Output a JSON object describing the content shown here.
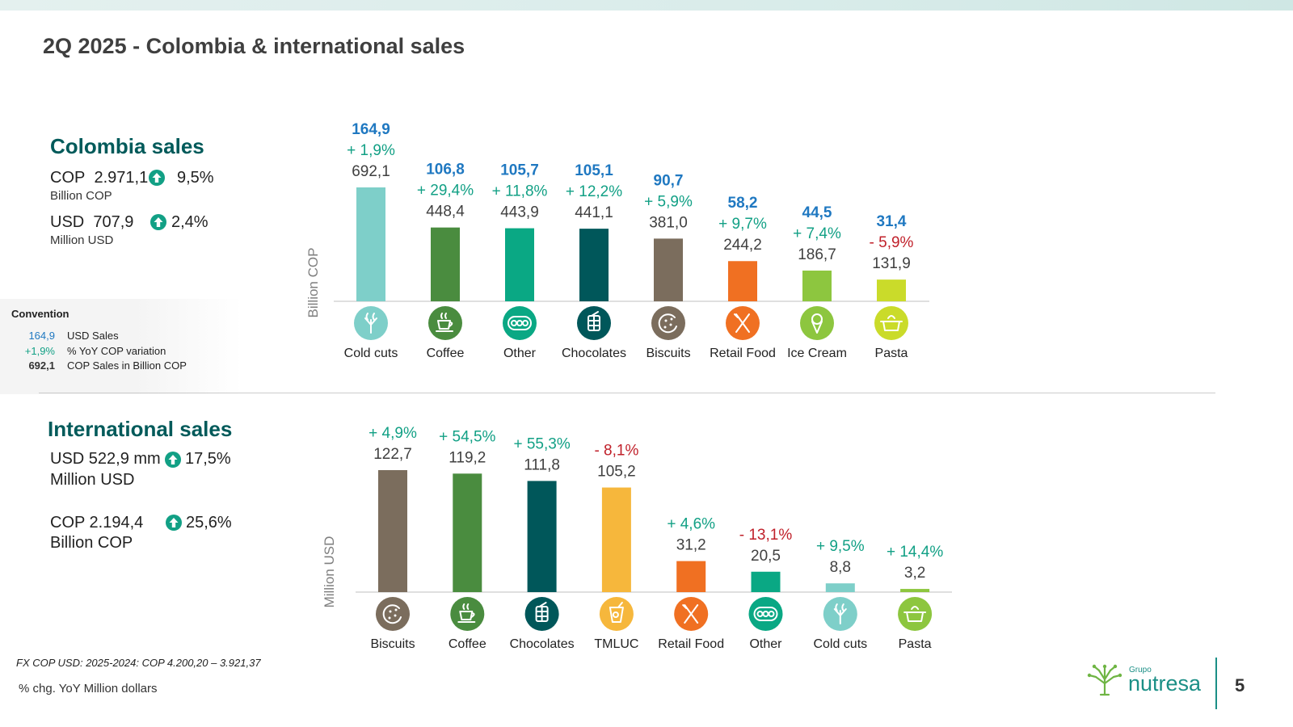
{
  "title": "2Q 2025 - Colombia & international sales",
  "colombia": {
    "heading": "Colombia sales",
    "cop_label": "COP",
    "cop_value": "2.971,1",
    "cop_change": "9,5%",
    "cop_unit": "Billion  COP",
    "usd_label": "USD",
    "usd_value": "707,9",
    "usd_change": "2,4%",
    "usd_unit": "Million USD"
  },
  "international": {
    "heading": "International sales",
    "usd_line": "USD 522,9 mm",
    "usd_change": "17,5%",
    "usd_unit": "Million USD",
    "cop_line": "COP 2.194,4",
    "cop_change": "25,6%",
    "cop_unit": "Billion COP"
  },
  "convention": {
    "title": "Convention",
    "rows": [
      {
        "value": "164,9",
        "label": "USD Sales",
        "color": "#1f78c1"
      },
      {
        "value": "+1,9%",
        "label": "% YoY COP variation",
        "color": "#12a085"
      },
      {
        "value": "692,1",
        "label": "COP Sales in Billion COP",
        "color": "#333333"
      }
    ]
  },
  "footer": {
    "fx_note": "FX COP USD: 2025-2024: COP 4.200,20 – 3.921,37",
    "note": "% chg. YoY  Million dollars",
    "logo_small": "Grupo",
    "logo_name": "nutresa",
    "page_number": "5"
  },
  "colors": {
    "usd_blue": "#1f78c1",
    "positive": "#12a085",
    "negative": "#c0202a",
    "teal_dark": "#005a5a"
  },
  "chart_data": [
    {
      "type": "bar",
      "ylabel": "Billion COP",
      "categories": [
        "Cold cuts",
        "Coffee",
        "Other",
        "Chocolates",
        "Biscuits",
        "Retail Food",
        "Ice Cream",
        "Pasta"
      ],
      "values": [
        692.1,
        448.4,
        443.9,
        441.1,
        381.0,
        244.2,
        186.7,
        131.9
      ],
      "value_labels": [
        "692,1",
        "448,4",
        "443,9",
        "441,1",
        "381,0",
        "244,2",
        "186,7",
        "131,9"
      ],
      "variation_labels": [
        "+ 1,9%",
        "+ 29,4%",
        "+ 11,8%",
        "+ 12,2%",
        "+ 5,9%",
        "+ 9,7%",
        "+ 7,4%",
        "- 5,9%"
      ],
      "usd_labels": [
        "164,9",
        "106,8",
        "105,7",
        "105,1",
        "90,7",
        "58,2",
        "44,5",
        "31,4"
      ],
      "bar_colors": [
        "#7ecfc9",
        "#4a8c3f",
        "#0aa884",
        "#00575a",
        "#7b6d5d",
        "#f07022",
        "#8dc63f",
        "#cadb2a"
      ],
      "icons": [
        "cold-cuts-icon",
        "coffee-icon",
        "other-icon",
        "chocolates-icon",
        "biscuits-icon",
        "retail-food-icon",
        "ice-cream-icon",
        "pasta-icon"
      ],
      "ylim": [
        0,
        692.1
      ]
    },
    {
      "type": "bar",
      "ylabel": "Million USD",
      "categories": [
        "Biscuits",
        "Coffee",
        "Chocolates",
        "TMLUC",
        "Retail Food",
        "Other",
        "Cold cuts",
        "Pasta"
      ],
      "values": [
        122.7,
        119.2,
        111.8,
        105.2,
        31.2,
        20.5,
        8.8,
        3.2
      ],
      "value_labels": [
        "122,7",
        "119,2",
        "111,8",
        "105,2",
        "31,2",
        "20,5",
        "8,8",
        "3,2"
      ],
      "variation_labels": [
        "+ 4,9%",
        "+ 54,5%",
        "+ 55,3%",
        "- 8,1%",
        "+ 4,6%",
        "- 13,1%",
        "+ 9,5%",
        "+ 14,4%"
      ],
      "bar_colors": [
        "#7b6d5d",
        "#4a8c3f",
        "#00575a",
        "#f6b73c",
        "#f07022",
        "#0aa884",
        "#7ecfc9",
        "#8dc63f"
      ],
      "icons": [
        "biscuits-icon",
        "coffee-icon",
        "chocolates-icon",
        "tmluc-icon",
        "retail-food-icon",
        "other-icon",
        "cold-cuts-icon",
        "pasta-icon"
      ],
      "ylim": [
        0,
        122.7
      ]
    }
  ]
}
